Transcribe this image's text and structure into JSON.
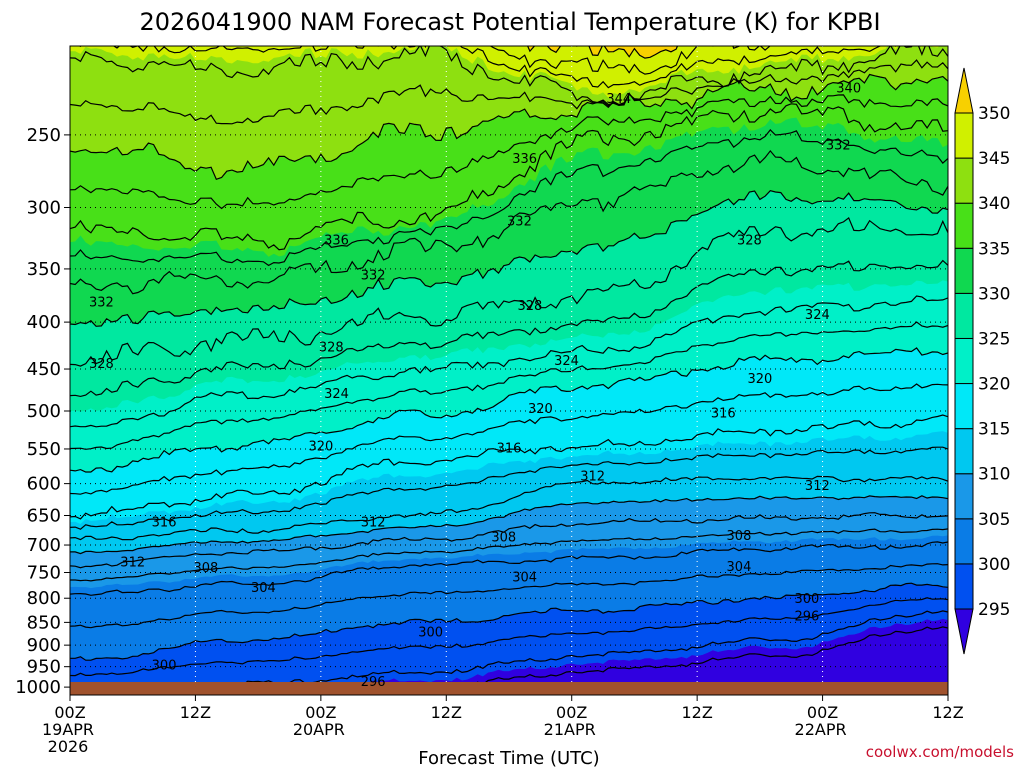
{
  "chart_data": {
    "type": "heatmap",
    "title": "2026041900 NAM Forecast Potential Temperature (K) for KPBI",
    "xlabel": "Forecast Time (UTC)",
    "ylabel": "",
    "credit": "coolwx.com/models",
    "units": "K",
    "x_ticks": [
      {
        "hour": 0,
        "lines": [
          "00Z",
          "19APR",
          "2026"
        ]
      },
      {
        "hour": 12,
        "lines": [
          "12Z"
        ]
      },
      {
        "hour": 24,
        "lines": [
          "00Z",
          "20APR"
        ]
      },
      {
        "hour": 36,
        "lines": [
          "12Z"
        ]
      },
      {
        "hour": 48,
        "lines": [
          "00Z",
          "21APR"
        ]
      },
      {
        "hour": 60,
        "lines": [
          "12Z"
        ]
      },
      {
        "hour": 72,
        "lines": [
          "00Z",
          "22APR"
        ]
      },
      {
        "hour": 84,
        "lines": [
          "12Z"
        ]
      }
    ],
    "xlim": [
      0,
      84
    ],
    "y_ticks": [
      250,
      300,
      350,
      400,
      450,
      500,
      550,
      600,
      650,
      700,
      750,
      800,
      850,
      900,
      950,
      1000
    ],
    "ylim": [
      1020,
      200
    ],
    "y_scale": "log-pressure (hPa)",
    "colorbar": {
      "levels": [
        295,
        300,
        305,
        310,
        315,
        320,
        325,
        330,
        335,
        340,
        345,
        350
      ],
      "colors": [
        "#3000e0",
        "#0050f0",
        "#0a7ce6",
        "#1a98e8",
        "#00c8f0",
        "#00e8f8",
        "#00f0c8",
        "#00e8a0",
        "#10d850",
        "#48e018",
        "#8ee010",
        "#d0f000",
        "#f8d000"
      ],
      "triangles": true
    },
    "contour_labels": [
      {
        "t": 52.5,
        "p": 228,
        "v": "344"
      },
      {
        "t": 74.5,
        "p": 222,
        "v": "340"
      },
      {
        "t": 43.5,
        "p": 265,
        "v": "336"
      },
      {
        "t": 73.5,
        "p": 256,
        "v": "332"
      },
      {
        "t": 25.5,
        "p": 325,
        "v": "336"
      },
      {
        "t": 43,
        "p": 310,
        "v": "332"
      },
      {
        "t": 65,
        "p": 325,
        "v": "328"
      },
      {
        "t": 29,
        "p": 355,
        "v": "332"
      },
      {
        "t": 3,
        "p": 380,
        "v": "332"
      },
      {
        "t": 44,
        "p": 383,
        "v": "328"
      },
      {
        "t": 71.5,
        "p": 392,
        "v": "324"
      },
      {
        "t": 25,
        "p": 425,
        "v": "328"
      },
      {
        "t": 3,
        "p": 443,
        "v": "328"
      },
      {
        "t": 47.5,
        "p": 440,
        "v": "324"
      },
      {
        "t": 66,
        "p": 460,
        "v": "320"
      },
      {
        "t": 25.5,
        "p": 478,
        "v": "324"
      },
      {
        "t": 45,
        "p": 496,
        "v": "320"
      },
      {
        "t": 62.5,
        "p": 502,
        "v": "316"
      },
      {
        "t": 24,
        "p": 545,
        "v": "320"
      },
      {
        "t": 42,
        "p": 548,
        "v": "316"
      },
      {
        "t": 50,
        "p": 588,
        "v": "312"
      },
      {
        "t": 71.5,
        "p": 602,
        "v": "312"
      },
      {
        "t": 9,
        "p": 660,
        "v": "316"
      },
      {
        "t": 29,
        "p": 660,
        "v": "312"
      },
      {
        "t": 41.5,
        "p": 685,
        "v": "308"
      },
      {
        "t": 64,
        "p": 683,
        "v": "308"
      },
      {
        "t": 6,
        "p": 730,
        "v": "312"
      },
      {
        "t": 13,
        "p": 740,
        "v": "308"
      },
      {
        "t": 64,
        "p": 738,
        "v": "304"
      },
      {
        "t": 43.5,
        "p": 758,
        "v": "304"
      },
      {
        "t": 18.5,
        "p": 778,
        "v": "304"
      },
      {
        "t": 70.5,
        "p": 800,
        "v": "300"
      },
      {
        "t": 70.5,
        "p": 835,
        "v": "296"
      },
      {
        "t": 34.5,
        "p": 870,
        "v": "300"
      },
      {
        "t": 9,
        "p": 945,
        "v": "300"
      },
      {
        "t": 29,
        "p": 985,
        "v": "296"
      }
    ]
  }
}
